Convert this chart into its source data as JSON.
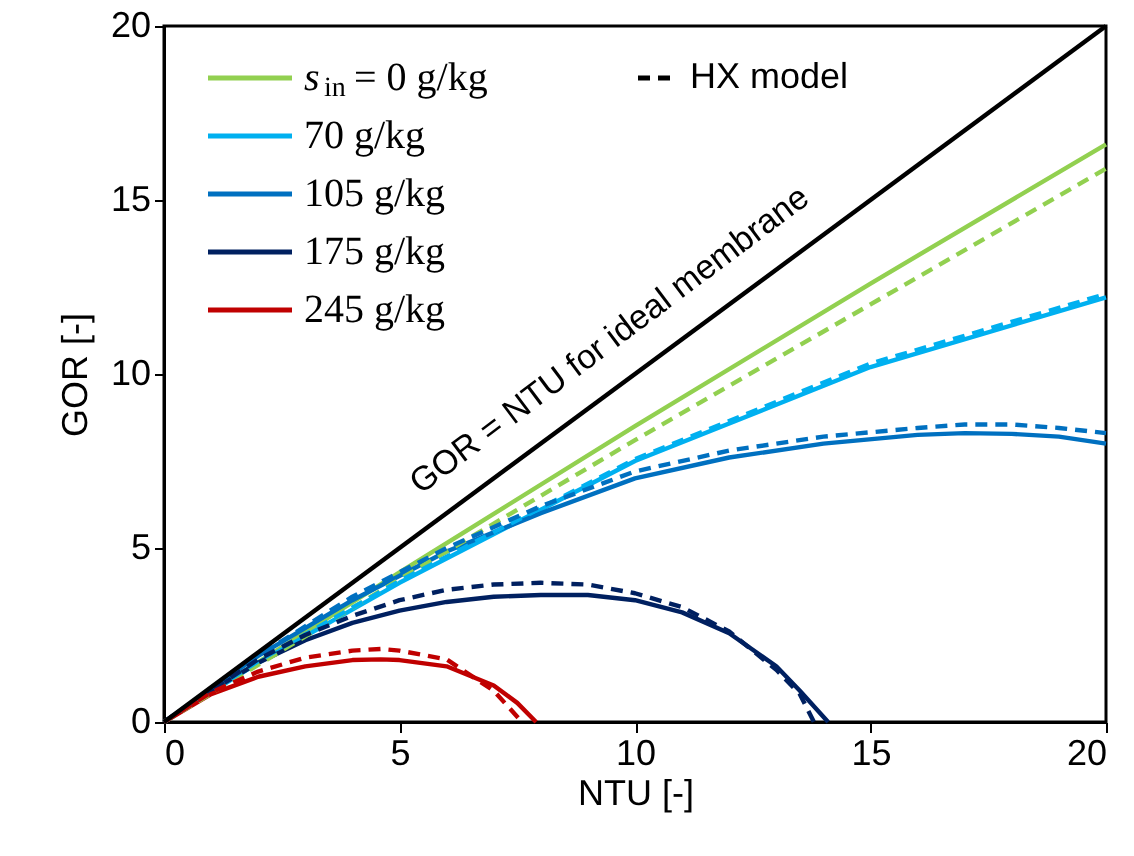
{
  "chart_data": {
    "type": "line",
    "xlabel": "NTU [-]",
    "ylabel": "GOR [-]",
    "xlim": [
      0,
      20
    ],
    "ylim": [
      0,
      20
    ],
    "xticks": [
      0,
      5,
      10,
      15,
      20
    ],
    "yticks": [
      0,
      5,
      10,
      15,
      20
    ],
    "grid": false,
    "legend": "top left",
    "marker": "none",
    "series": [
      {
        "name": "s$_{in}$ = 0 g/kg",
        "color": "#92d050",
        "line_style": "solid",
        "x": [
          0,
          5,
          10,
          15,
          20
        ],
        "values": [
          0,
          4.3,
          8.5,
          12.6,
          16.6
        ]
      },
      {
        "name": "70 g/kg",
        "color": "#00b0f0",
        "line_style": "solid",
        "x": [
          0,
          2,
          5,
          10,
          15,
          20
        ],
        "values": [
          0,
          1.7,
          4.0,
          7.5,
          10.2,
          12.2
        ]
      },
      {
        "name": "105 g/kg",
        "color": "#0070c0",
        "line_style": "solid",
        "x": [
          0,
          2,
          4,
          6,
          8,
          10,
          12,
          14,
          16,
          17,
          18,
          19,
          20
        ],
        "values": [
          0,
          1.9,
          3.5,
          4.9,
          6.0,
          7.0,
          7.6,
          8.0,
          8.25,
          8.3,
          8.28,
          8.2,
          8.0
        ]
      },
      {
        "name": "175 g/kg",
        "color": "#002060",
        "line_style": "solid",
        "x": [
          0,
          1,
          2,
          3,
          4,
          5,
          6,
          7,
          8,
          9,
          10,
          11,
          12,
          13,
          13.5,
          14.1
        ],
        "values": [
          0,
          0.9,
          1.7,
          2.35,
          2.85,
          3.2,
          3.45,
          3.6,
          3.65,
          3.65,
          3.5,
          3.15,
          2.55,
          1.6,
          0.9,
          0
        ]
      },
      {
        "name": "245 g/kg",
        "color": "#c00000",
        "line_style": "solid",
        "x": [
          0,
          1,
          2,
          3,
          4,
          4.6,
          5,
          6,
          7,
          7.5,
          7.9
        ],
        "values": [
          0,
          0.8,
          1.3,
          1.6,
          1.78,
          1.8,
          1.78,
          1.6,
          1.05,
          0.55,
          0
        ]
      },
      {
        "name": "HX model",
        "color": "#000000",
        "line_style": "dashed"
      },
      {
        "color": "#92d050",
        "line_style": "dashed",
        "x": [
          0,
          5,
          10,
          15,
          20
        ],
        "values": [
          0,
          4.1,
          8.1,
          12.0,
          15.9
        ]
      },
      {
        "color": "#00b0f0",
        "line_style": "dashed",
        "x": [
          0,
          2,
          5,
          10,
          15,
          20
        ],
        "values": [
          0,
          1.75,
          4.05,
          7.55,
          10.3,
          12.3
        ]
      },
      {
        "color": "#0070c0",
        "line_style": "dashed",
        "x": [
          0,
          2,
          4,
          6,
          8,
          10,
          12,
          14,
          16,
          17,
          18,
          19,
          20
        ],
        "values": [
          0,
          1.9,
          3.6,
          5.0,
          6.2,
          7.2,
          7.8,
          8.2,
          8.45,
          8.55,
          8.55,
          8.45,
          8.3
        ]
      },
      {
        "color": "#002060",
        "line_style": "dashed",
        "x": [
          0,
          1,
          2,
          3,
          4,
          5,
          6,
          7,
          8,
          9,
          10,
          11,
          12,
          13,
          13.5,
          13.8
        ],
        "values": [
          0,
          0.9,
          1.8,
          2.5,
          3.05,
          3.5,
          3.8,
          3.95,
          4.0,
          3.95,
          3.7,
          3.3,
          2.6,
          1.5,
          0.8,
          0
        ]
      },
      {
        "color": "#c00000",
        "line_style": "dashed",
        "x": [
          0,
          1,
          2,
          3,
          4,
          4.6,
          5,
          6,
          7,
          7.3,
          7.6
        ],
        "values": [
          0,
          0.85,
          1.45,
          1.85,
          2.05,
          2.1,
          2.05,
          1.8,
          0.9,
          0.45,
          0
        ]
      },
      {
        "color": "#000000",
        "line_style": "solid",
        "x": [
          0,
          20
        ],
        "values": [
          0,
          20
        ]
      }
    ],
    "annotations": [
      {
        "text": "GOR = NTU for ideal membrane",
        "x": 10,
        "y": 10
      }
    ]
  }
}
